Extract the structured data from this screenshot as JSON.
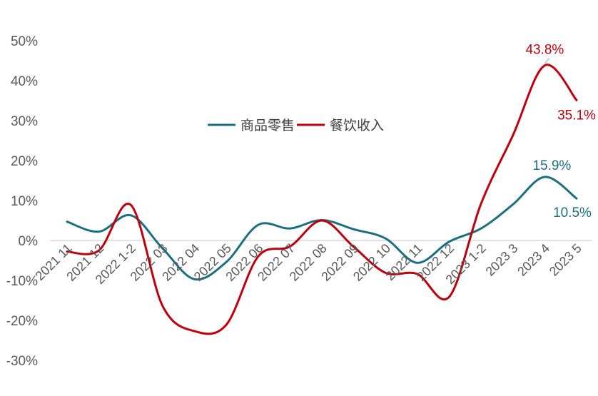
{
  "chart_data": {
    "type": "line",
    "categories": [
      "2021 11",
      "2021 12",
      "2022 1-2",
      "2022 03",
      "2022 04",
      "2022 05",
      "2022 06",
      "2022 07",
      "2022 08",
      "2022 09",
      "2022 10",
      "2022 11",
      "2022 12",
      "2023 1-2",
      "2023 3",
      "2023 4",
      "2023 5"
    ],
    "series": [
      {
        "name": "商品零售",
        "color": "#1a6f80",
        "values": [
          4.7,
          2.2,
          6.3,
          -2.0,
          -9.7,
          -5.4,
          3.9,
          3.0,
          5.1,
          2.8,
          0.5,
          -5.6,
          -0.3,
          3.0,
          9.0,
          15.9,
          10.5
        ]
      },
      {
        "name": "餐饮收入",
        "color": "#c0000b",
        "values": [
          -2.8,
          -2.5,
          8.9,
          -16.4,
          -22.7,
          -21.1,
          -4.0,
          -1.5,
          5.0,
          -1.6,
          -8.1,
          -8.4,
          -14.1,
          9.2,
          26.3,
          43.8,
          35.1
        ]
      }
    ],
    "ylim": [
      -30,
      50
    ],
    "yticks": [
      "50%",
      "40%",
      "30%",
      "20%",
      "10%",
      "0%",
      "-10%",
      "-20%",
      "-30%"
    ],
    "legend": {
      "position": "top-center"
    },
    "annotations": [
      {
        "series": 1,
        "index": 15,
        "text": "43.8%"
      },
      {
        "series": 1,
        "index": 16,
        "text": "35.1%"
      },
      {
        "series": 0,
        "index": 15,
        "text": "15.9%"
      },
      {
        "series": 0,
        "index": 16,
        "text": "10.5%"
      }
    ],
    "grid": false
  }
}
